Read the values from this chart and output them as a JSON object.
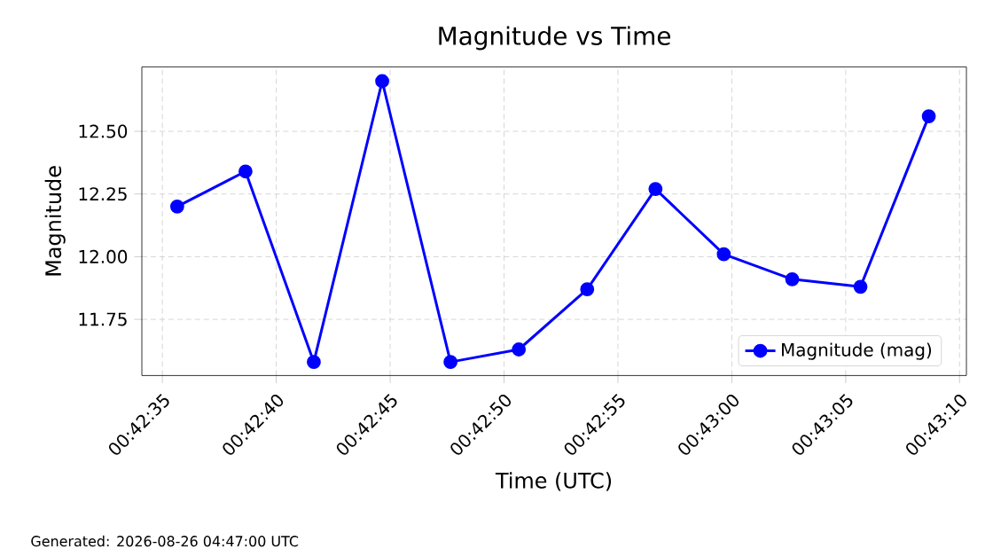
{
  "chart_data": {
    "type": "line",
    "title": "Magnitude vs Time",
    "xlabel": "Time (UTC)",
    "ylabel": "Magnitude",
    "x": [
      0.709903,
      0.710736,
      0.711569,
      0.712403,
      0.713236,
      0.714069,
      0.714903,
      0.715736,
      0.716569,
      0.717403,
      0.718236,
      0.719069
    ],
    "series": [
      {
        "name": "Magnitude (mag)",
        "color": "#0000ff",
        "values": [
          12.2,
          12.34,
          11.58,
          12.7,
          11.58,
          11.63,
          11.87,
          12.27,
          12.01,
          11.91,
          11.88,
          12.56
        ]
      }
    ],
    "xlim": [
      0.709472,
      0.719528
    ],
    "ylim": [
      11.526,
      12.757
    ],
    "xticks": [
      {
        "value": 0.709722,
        "label": "00:42:35"
      },
      {
        "value": 0.711111,
        "label": "00:42:40"
      },
      {
        "value": 0.7125,
        "label": "00:42:45"
      },
      {
        "value": 0.713889,
        "label": "00:42:50"
      },
      {
        "value": 0.715278,
        "label": "00:42:55"
      },
      {
        "value": 0.716667,
        "label": "00:43:00"
      },
      {
        "value": 0.718056,
        "label": "00:43:05"
      },
      {
        "value": 0.719444,
        "label": "00:43:10"
      }
    ],
    "yticks": [
      {
        "value": 11.75,
        "label": "11.75"
      },
      {
        "value": 12.0,
        "label": "12.00"
      },
      {
        "value": 12.25,
        "label": "12.25"
      },
      {
        "value": 12.5,
        "label": "12.50"
      }
    ],
    "grid": true,
    "legend": "bottom right",
    "marker": "circle",
    "line_style": "solid",
    "annotations": [
      "Generated: 2026-08-26 04:47:00 UTC"
    ]
  }
}
